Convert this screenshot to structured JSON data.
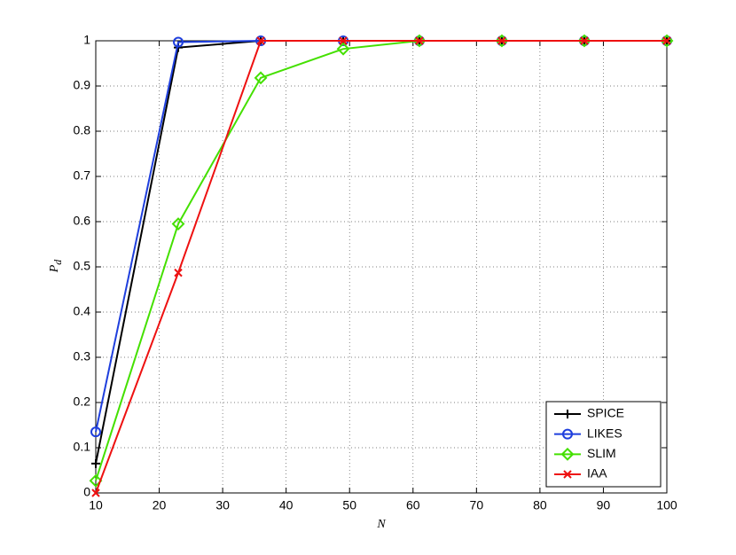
{
  "chart_data": {
    "type": "line",
    "xlabel": "N",
    "ylabel": {
      "main": "P",
      "sub": "d"
    },
    "x": [
      10,
      23,
      36,
      49,
      61,
      74,
      87,
      100
    ],
    "series": [
      {
        "name": "SPICE",
        "color": "#000000",
        "marker": "plus",
        "values": [
          0.065,
          0.985,
          1,
          1,
          1,
          1,
          1,
          1
        ]
      },
      {
        "name": "LIKES",
        "color": "#1f3fdd",
        "marker": "circle",
        "values": [
          0.135,
          0.997,
          1,
          1,
          1,
          1,
          1,
          1
        ]
      },
      {
        "name": "SLIM",
        "color": "#44e000",
        "marker": "diamond",
        "values": [
          0.027,
          0.595,
          0.918,
          0.982,
          1,
          1,
          1,
          1
        ]
      },
      {
        "name": "IAA",
        "color": "#ee1111",
        "marker": "cross",
        "values": [
          0,
          0.487,
          1,
          1,
          1,
          1,
          1,
          1
        ]
      }
    ],
    "xlim": [
      10,
      100
    ],
    "xticks": [
      10,
      20,
      30,
      40,
      50,
      60,
      70,
      80,
      90,
      100
    ],
    "ylim": [
      0,
      1
    ],
    "yticks": [
      0,
      0.1,
      0.2,
      0.3,
      0.4,
      0.5,
      0.6,
      0.7,
      0.8,
      0.9,
      1
    ],
    "grid": true,
    "legend": "lower right"
  }
}
